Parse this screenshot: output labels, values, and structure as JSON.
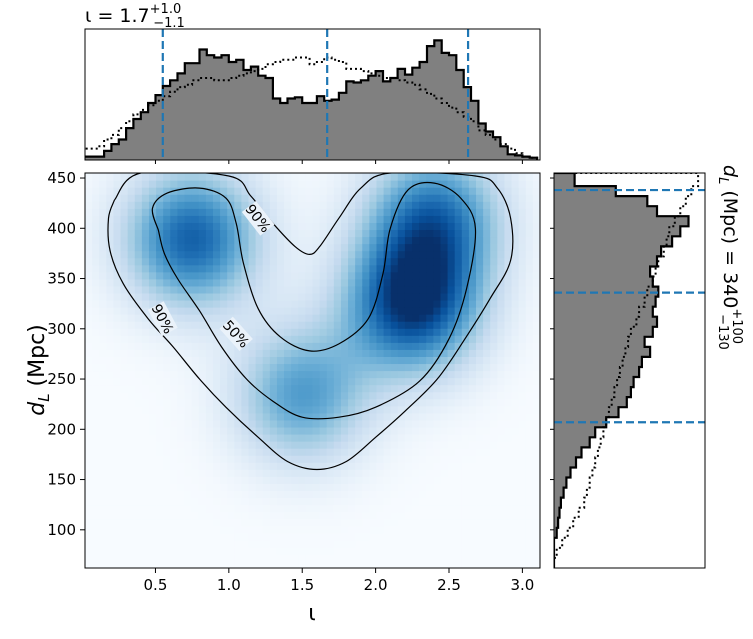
{
  "chart_data": {
    "type": "heatmap",
    "title_top": {
      "prefix": "ι = 1.7",
      "sup": "+1.0",
      "sub": "−1.1"
    },
    "title_right": {
      "prefix": "d",
      "prefix_sub": "L",
      "mid": " (Mpc) = 340",
      "sup": "+100",
      "sub": "−130"
    },
    "xlabel": "ι",
    "ylabel": {
      "main": "d",
      "sub": "L",
      "suffix": " (Mpc)"
    },
    "xlim": [
      0.02,
      3.12
    ],
    "ylim": [
      62,
      455
    ],
    "xticks": [
      0.5,
      1.0,
      1.5,
      2.0,
      2.5,
      3.0
    ],
    "xtick_labels": [
      "0.5",
      "1.0",
      "1.5",
      "2.0",
      "2.5",
      "3.0"
    ],
    "yticks": [
      100,
      150,
      200,
      250,
      300,
      350,
      400,
      450
    ],
    "ytick_labels": [
      "100",
      "150",
      "200",
      "250",
      "300",
      "350",
      "400",
      "450"
    ],
    "colormap": "Blues",
    "density_peaks": [
      {
        "x": 0.75,
        "y": 390,
        "weight": 0.85
      },
      {
        "x": 2.25,
        "y": 325,
        "weight": 1.0
      },
      {
        "x": 2.4,
        "y": 410,
        "weight": 0.75
      },
      {
        "x": 1.5,
        "y": 235,
        "weight": 0.6
      }
    ],
    "contours": [
      {
        "label": "50%",
        "points": [
          [
            0.52,
            398
          ],
          [
            0.48,
            420
          ],
          [
            0.58,
            435
          ],
          [
            0.8,
            440
          ],
          [
            0.98,
            430
          ],
          [
            1.05,
            405
          ],
          [
            1.1,
            365
          ],
          [
            1.2,
            320
          ],
          [
            1.35,
            292
          ],
          [
            1.55,
            278
          ],
          [
            1.75,
            285
          ],
          [
            1.95,
            310
          ],
          [
            2.05,
            355
          ],
          [
            2.1,
            400
          ],
          [
            2.22,
            438
          ],
          [
            2.4,
            445
          ],
          [
            2.58,
            430
          ],
          [
            2.68,
            400
          ],
          [
            2.62,
            340
          ],
          [
            2.5,
            290
          ],
          [
            2.3,
            248
          ],
          [
            2.0,
            222
          ],
          [
            1.75,
            212
          ],
          [
            1.5,
            212
          ],
          [
            1.3,
            228
          ],
          [
            1.12,
            250
          ],
          [
            0.95,
            282
          ],
          [
            0.8,
            318
          ],
          [
            0.65,
            350
          ],
          [
            0.56,
            375
          ],
          [
            0.52,
            398
          ]
        ]
      },
      {
        "label": "90%",
        "points": [
          [
            0.22,
            428
          ],
          [
            0.18,
            410
          ],
          [
            0.19,
            378
          ],
          [
            0.28,
            345
          ],
          [
            0.45,
            310
          ],
          [
            0.62,
            282
          ],
          [
            0.8,
            250
          ],
          [
            0.98,
            222
          ],
          [
            1.2,
            192
          ],
          [
            1.4,
            168
          ],
          [
            1.6,
            160
          ],
          [
            1.8,
            168
          ],
          [
            2.0,
            192
          ],
          [
            2.2,
            218
          ],
          [
            2.42,
            250
          ],
          [
            2.6,
            288
          ],
          [
            2.78,
            330
          ],
          [
            2.92,
            368
          ],
          [
            2.92,
            410
          ],
          [
            2.83,
            440
          ],
          [
            2.68,
            452
          ],
          [
            2.1,
            455
          ],
          [
            1.9,
            440
          ],
          [
            1.75,
            410
          ],
          [
            1.62,
            382
          ],
          [
            1.55,
            374
          ],
          [
            1.45,
            382
          ],
          [
            1.3,
            405
          ],
          [
            1.15,
            432
          ],
          [
            1.0,
            452
          ],
          [
            0.4,
            455
          ],
          [
            0.22,
            428
          ]
        ]
      }
    ],
    "vertical_quantile_lines": [
      0.55,
      1.67,
      2.63
    ],
    "horizontal_quantile_lines": [
      207,
      336,
      438
    ],
    "top_histogram": {
      "bins": [
        0.0,
        0.1,
        0.15,
        0.2,
        0.25,
        0.3,
        0.35,
        0.4,
        0.45,
        0.5,
        0.55,
        0.6,
        0.65,
        0.7,
        0.75,
        0.8,
        0.85,
        0.9,
        0.95,
        1.0,
        1.05,
        1.1,
        1.15,
        1.2,
        1.25,
        1.3,
        1.35,
        1.4,
        1.45,
        1.5,
        1.55,
        1.6,
        1.65,
        1.7,
        1.75,
        1.8,
        1.85,
        1.9,
        1.95,
        2.0,
        2.05,
        2.1,
        2.15,
        2.2,
        2.25,
        2.3,
        2.35,
        2.4,
        2.45,
        2.5,
        2.55,
        2.6,
        2.65,
        2.7,
        2.75,
        2.8,
        2.85,
        2.9,
        2.95,
        3.0,
        3.05,
        3.1
      ],
      "filled_counts": [
        0.03,
        0.03,
        0.08,
        0.14,
        0.18,
        0.28,
        0.36,
        0.42,
        0.5,
        0.57,
        0.65,
        0.7,
        0.76,
        0.85,
        0.85,
        0.97,
        0.92,
        0.9,
        0.92,
        0.86,
        0.88,
        0.79,
        0.82,
        0.74,
        0.72,
        0.54,
        0.5,
        0.54,
        0.55,
        0.5,
        0.5,
        0.56,
        0.52,
        0.53,
        0.59,
        0.69,
        0.68,
        0.7,
        0.74,
        0.78,
        0.69,
        0.72,
        0.8,
        0.75,
        0.81,
        0.86,
        1.0,
        1.05,
        0.94,
        0.92,
        0.79,
        0.64,
        0.52,
        0.32,
        0.25,
        0.2,
        0.12,
        0.05,
        0.04,
        0.03,
        0.02
      ],
      "prior_counts": [
        0.1,
        0.12,
        0.18,
        0.22,
        0.28,
        0.34,
        0.4,
        0.44,
        0.48,
        0.52,
        0.56,
        0.6,
        0.64,
        0.66,
        0.7,
        0.72,
        0.72,
        0.7,
        0.7,
        0.72,
        0.74,
        0.76,
        0.78,
        0.8,
        0.84,
        0.86,
        0.88,
        0.88,
        0.9,
        0.9,
        0.84,
        0.86,
        0.9,
        0.88,
        0.86,
        0.8,
        0.8,
        0.78,
        0.76,
        0.74,
        0.72,
        0.72,
        0.7,
        0.68,
        0.66,
        0.62,
        0.58,
        0.54,
        0.5,
        0.46,
        0.42,
        0.38,
        0.34,
        0.26,
        0.22,
        0.18,
        0.14,
        0.1,
        0.06,
        0.03,
        0.02
      ],
      "ymax": 1.15
    },
    "right_histogram": {
      "bins": [
        62,
        72,
        82,
        92,
        102,
        112,
        122,
        132,
        142,
        152,
        162,
        172,
        182,
        192,
        202,
        212,
        222,
        232,
        242,
        252,
        262,
        272,
        282,
        292,
        302,
        312,
        322,
        332,
        342,
        352,
        362,
        372,
        382,
        392,
        402,
        412,
        422,
        432,
        442,
        455
      ],
      "filled_counts": [
        0.0,
        0.0,
        0.0,
        0.02,
        0.03,
        0.04,
        0.05,
        0.07,
        0.09,
        0.12,
        0.16,
        0.2,
        0.26,
        0.3,
        0.38,
        0.47,
        0.53,
        0.56,
        0.58,
        0.62,
        0.64,
        0.7,
        0.66,
        0.72,
        0.75,
        0.72,
        0.74,
        0.76,
        0.72,
        0.7,
        0.75,
        0.78,
        0.86,
        0.92,
        0.98,
        0.75,
        0.68,
        0.45,
        0.15
      ],
      "prior_counts": [
        0.0,
        0.02,
        0.06,
        0.1,
        0.14,
        0.18,
        0.22,
        0.24,
        0.26,
        0.28,
        0.3,
        0.32,
        0.34,
        0.36,
        0.38,
        0.4,
        0.42,
        0.44,
        0.46,
        0.48,
        0.5,
        0.52,
        0.54,
        0.56,
        0.6,
        0.62,
        0.66,
        0.68,
        0.72,
        0.74,
        0.76,
        0.8,
        0.82,
        0.84,
        0.88,
        0.92,
        0.96,
        1.0,
        1.05
      ],
      "xmax": 1.1
    },
    "colors": {
      "quantile_line": "#1f77b4",
      "hist_fill": "#808080",
      "hist_edge": "#000000",
      "contour": "#000000"
    }
  }
}
